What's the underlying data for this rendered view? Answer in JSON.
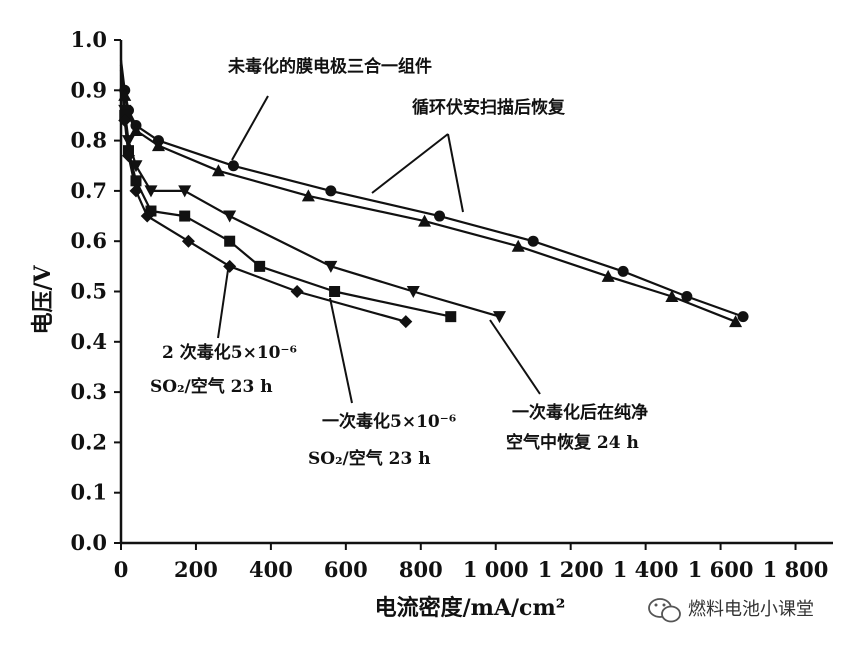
{
  "chart_data": {
    "type": "line",
    "xlabel": "电流密度/mA/cm²",
    "ylabel": "电压/V",
    "xlim": [
      0,
      1900
    ],
    "ylim": [
      0,
      1.0
    ],
    "x_ticks": [
      "0",
      "200",
      "400",
      "600",
      "800",
      "1 000",
      "1 200",
      "1 400",
      "1 600",
      "1 800"
    ],
    "x_tick_values": [
      0,
      200,
      400,
      600,
      800,
      1000,
      1200,
      1400,
      1600,
      1800
    ],
    "y_ticks": [
      "0.0",
      "0.1",
      "0.2",
      "0.3",
      "0.4",
      "0.5",
      "0.6",
      "0.7",
      "0.8",
      "0.9",
      "1.0"
    ],
    "y_tick_values": [
      0,
      0.1,
      0.2,
      0.3,
      0.4,
      0.5,
      0.6,
      0.7,
      0.8,
      0.9,
      1.0
    ],
    "grid": false,
    "series": [
      {
        "marker": "circle",
        "x": [
          0,
          10,
          20,
          40,
          100,
          300,
          560,
          850,
          1100,
          1340,
          1510,
          1660
        ],
        "y": [
          0.96,
          0.9,
          0.86,
          0.83,
          0.8,
          0.75,
          0.7,
          0.65,
          0.6,
          0.54,
          0.49,
          0.45
        ]
      },
      {
        "marker": "triangle-up",
        "x": [
          0,
          10,
          20,
          40,
          100,
          260,
          500,
          810,
          1060,
          1300,
          1470,
          1640
        ],
        "y": [
          0.95,
          0.89,
          0.85,
          0.82,
          0.79,
          0.74,
          0.69,
          0.64,
          0.59,
          0.53,
          0.49,
          0.44
        ]
      },
      {
        "marker": "triangle-down",
        "x": [
          0,
          10,
          20,
          40,
          80,
          170,
          290,
          560,
          780,
          1010
        ],
        "y": [
          0.95,
          0.86,
          0.8,
          0.75,
          0.7,
          0.7,
          0.65,
          0.55,
          0.5,
          0.45
        ]
      },
      {
        "marker": "square",
        "x": [
          0,
          10,
          20,
          40,
          80,
          170,
          290,
          370,
          570,
          880
        ],
        "y": [
          0.94,
          0.85,
          0.78,
          0.72,
          0.66,
          0.65,
          0.6,
          0.55,
          0.5,
          0.45
        ]
      },
      {
        "marker": "diamond",
        "x": [
          0,
          10,
          20,
          40,
          70,
          180,
          290,
          470,
          760
        ],
        "y": [
          0.94,
          0.84,
          0.77,
          0.7,
          0.65,
          0.6,
          0.55,
          0.5,
          0.44
        ]
      }
    ],
    "annotations": {
      "unpoisoned": "未毒化的膜电极三合一组件",
      "recovered_cv": "循环伏安扫描后恢复",
      "poison2_line1": "2 次毒化5×10⁻⁶",
      "poison2_line2": "SO₂/空气 23 h",
      "poison1_line1": "一次毒化5×10⁻⁶",
      "poison1_line2": "SO₂/空气 23 h",
      "recover_air_line1": "一次毒化后在纯净",
      "recover_air_line2": "空气中恢复 24 h"
    }
  },
  "watermark": {
    "text": "燃料电池小课堂",
    "icon": "wechat-icon"
  }
}
